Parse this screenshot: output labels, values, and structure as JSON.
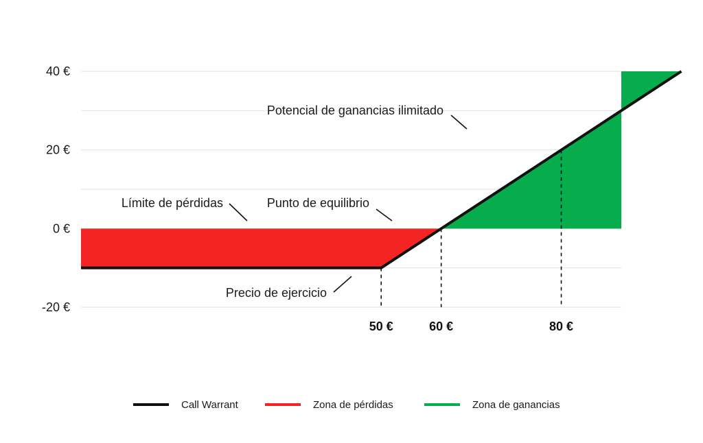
{
  "chart_data": {
    "type": "line",
    "x": [
      0,
      50,
      84
    ],
    "y": [
      -10,
      -10,
      24
    ],
    "xlim": [
      0,
      90
    ],
    "ylim": [
      -20,
      40
    ],
    "y_ticks": [
      {
        "value": 40,
        "label": "40 €"
      },
      {
        "value": 20,
        "label": "20 €"
      },
      {
        "value": 0,
        "label": "0 €"
      },
      {
        "value": -20,
        "label": "-20 €"
      }
    ],
    "x_ticks": [
      {
        "value": 50,
        "label": "50 €"
      },
      {
        "value": 60,
        "label": "60 €"
      },
      {
        "value": 80,
        "label": "80 €"
      }
    ],
    "grid": true,
    "grid_values": [
      40,
      30,
      20,
      10,
      0,
      -10,
      -20
    ],
    "series": [
      {
        "name": "Call Warrant",
        "color": "#111111"
      }
    ],
    "regions": [
      {
        "name": "Zona de pérdidas",
        "color": "#f42424"
      },
      {
        "name": "Zona de ganancias",
        "color": "#07ac4c"
      }
    ],
    "annotations": [
      {
        "id": "unlimited",
        "text": "Potencial de ganancias ilimitado"
      },
      {
        "id": "loss_limit",
        "text": "Límite de pérdidas"
      },
      {
        "id": "breakeven",
        "text": "Punto de equilibrio"
      },
      {
        "id": "strike",
        "text": "Precio de ejercicio"
      }
    ],
    "legend": {
      "position": "bottom",
      "items": [
        {
          "label": "Call Warrant",
          "color": "#111111"
        },
        {
          "label": "Zona de pérdidas",
          "color": "#f42424"
        },
        {
          "label": "Zona de ganancias",
          "color": "#07ac4c"
        }
      ]
    }
  }
}
